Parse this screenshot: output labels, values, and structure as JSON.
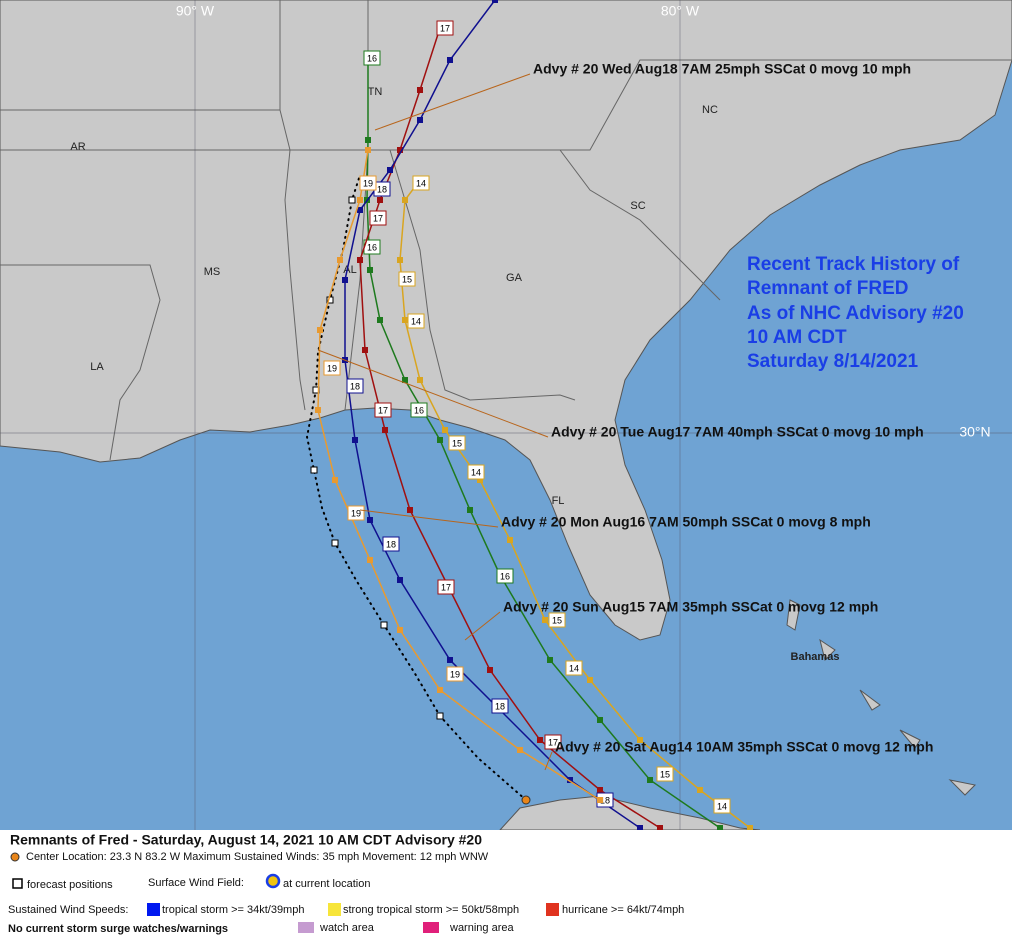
{
  "map": {
    "grid_labels": [
      "90° W",
      "80° W",
      "30°N"
    ],
    "regions": [
      "AR",
      "TN",
      "NC",
      "MS",
      "AL",
      "GA",
      "SC",
      "LA",
      "FL",
      "Bahamas"
    ],
    "title_lines": [
      "Recent Track History of",
      "Remnant of FRED",
      "As of NHC Advisory #20",
      "10 AM CDT",
      "Saturday 8/14/2021"
    ],
    "advisories": [
      "Advy # 20 Wed Aug18 7AM  25mph SSCat 0 movg 10 mph",
      "Advy # 20 Tue Aug17 7AM  40mph SSCat 0 movg 10 mph",
      "Advy # 20 Mon Aug16 7AM  50mph SSCat 0 movg 8 mph",
      "Advy # 20 Sun Aug15 7AM  35mph SSCat 0 movg 12 mph",
      "Advy # 20 Sat Aug14 10AM  35mph SSCat 0 movg 12 mph"
    ],
    "tracks": [
      {
        "labels": [
          "14",
          "15",
          "14",
          "15",
          "14",
          "15",
          "14",
          "15",
          "14"
        ]
      },
      {
        "labels": [
          "16",
          "16",
          "16",
          "16"
        ]
      },
      {
        "labels": [
          "17",
          "17",
          "17",
          "17",
          "17"
        ]
      },
      {
        "labels": [
          "18",
          "18",
          "18",
          "18",
          "18"
        ]
      },
      {
        "labels": [
          "19",
          "19",
          "19",
          "19"
        ]
      }
    ]
  },
  "footer": {
    "title": "Remnants of Fred  -  Saturday, August 14, 2021  10 AM CDT   Advisory #20",
    "center": "Center Location: 23.3 N  83.2 W   Maximum Sustained Winds: 35 mph  Movement: 12 mph WNW",
    "forecast": "forecast positions",
    "wind_field": "Surface Wind Field:",
    "wind_field_note": "at current location",
    "speeds_label": "Sustained Wind Speeds:",
    "ts": "tropical storm >= 34kt/39mph",
    "sts": "strong tropical storm >= 50kt/58mph",
    "hur": "hurricane >= 64kt/74mph",
    "surge": "No current storm surge watches/warnings",
    "watch": "watch area",
    "warning": "warning area"
  }
}
